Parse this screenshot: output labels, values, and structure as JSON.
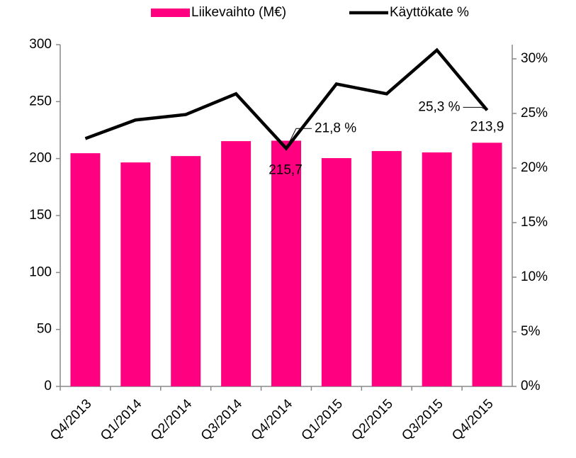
{
  "chart_data": {
    "type": "bar-line",
    "categories": [
      "Q4/2013",
      "Q1/2014",
      "Q2/2014",
      "Q3/2014",
      "Q4/2014",
      "Q1/2015",
      "Q2/2015",
      "Q3/2015",
      "Q4/2015"
    ],
    "series": [
      {
        "name": "Liikevaihto (M€)",
        "type": "bar",
        "color": "#ff0080",
        "axis": "y",
        "values": [
          204.7,
          196.6,
          202.2,
          215.3,
          215.7,
          200.4,
          206.6,
          205.4,
          213.9
        ],
        "value_labels": [
          null,
          null,
          null,
          null,
          "215,7",
          null,
          null,
          null,
          "213,9"
        ]
      },
      {
        "name": "Käyttökate %",
        "type": "line",
        "color": "#000000",
        "axis": "y2",
        "values": [
          22.7,
          24.4,
          24.9,
          26.8,
          21.8,
          27.7,
          26.8,
          30.8,
          25.3
        ],
        "value_labels": [
          null,
          null,
          null,
          null,
          "21,8 %",
          null,
          null,
          null,
          "25,3 %"
        ]
      }
    ],
    "ylim": [
      0,
      300
    ],
    "yticks": [
      0,
      50,
      100,
      150,
      200,
      250,
      300
    ],
    "y2lim": [
      0,
      31.3
    ],
    "y2ticks": [
      {
        "value": 0,
        "label": "0%"
      },
      {
        "value": 5,
        "label": "5%"
      },
      {
        "value": 10,
        "label": "10%"
      },
      {
        "value": 15,
        "label": "15%"
      },
      {
        "value": 20,
        "label": "20%"
      },
      {
        "value": 25,
        "label": "25%"
      },
      {
        "value": 30,
        "label": "30%"
      }
    ],
    "grid": false
  }
}
